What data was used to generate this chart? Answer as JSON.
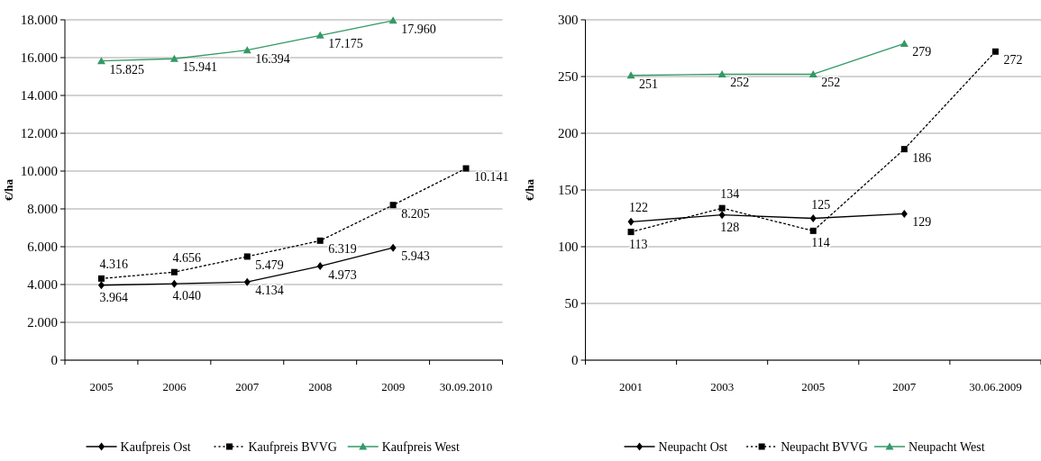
{
  "chart_data": [
    {
      "type": "line",
      "ylabel": "€/ha",
      "categories": [
        "2005",
        "2006",
        "2007",
        "2008",
        "2009",
        "30.09.2010"
      ],
      "ylim": [
        0,
        18000
      ],
      "yticks": [
        {
          "value": 0,
          "label": "0"
        },
        {
          "value": 2000,
          "label": "2.000"
        },
        {
          "value": 4000,
          "label": "4.000"
        },
        {
          "value": 6000,
          "label": "6.000"
        },
        {
          "value": 8000,
          "label": "8.000"
        },
        {
          "value": 10000,
          "label": "10.000"
        },
        {
          "value": 12000,
          "label": "12.000"
        },
        {
          "value": 14000,
          "label": "14.000"
        },
        {
          "value": 16000,
          "label": "16.000"
        },
        {
          "value": 18000,
          "label": "18.000"
        }
      ],
      "grid": "y",
      "legend": "bottom",
      "series": [
        {
          "name": "Kaufpreis Ost",
          "color": "#000000",
          "marker": "diamond",
          "line_style": "solid",
          "values": [
            3964,
            4040,
            4134,
            4973,
            5943,
            null
          ],
          "value_labels": [
            "3.964",
            "4.040",
            "4.134",
            "4.973",
            "5.943",
            null
          ]
        },
        {
          "name": "Kaufpreis BVVG",
          "color": "#000000",
          "marker": "square",
          "line_style": "dotted",
          "values": [
            4316,
            4656,
            5479,
            6319,
            8205,
            10141
          ],
          "value_labels": [
            "4.316",
            "4.656",
            "5.479",
            "6.319",
            "8.205",
            "10.141"
          ]
        },
        {
          "name": "Kaufpreis West",
          "color": "#339966",
          "marker": "triangle",
          "line_style": "solid",
          "values": [
            15825,
            15941,
            16394,
            17175,
            17960,
            null
          ],
          "value_labels": [
            "15.825",
            "15.941",
            "16.394",
            "17.175",
            "17.960",
            null
          ]
        }
      ]
    },
    {
      "type": "line",
      "ylabel": "€/ha",
      "categories": [
        "2001",
        "2003",
        "2005",
        "2007",
        "30.06.2009"
      ],
      "ylim": [
        0,
        300
      ],
      "yticks": [
        0,
        50,
        100,
        150,
        200,
        250,
        300
      ],
      "grid": "y",
      "legend": "bottom",
      "data_labels": true,
      "series": [
        {
          "name": "Neupacht Ost",
          "color": "#000000",
          "marker": "diamond",
          "line_style": "solid",
          "values": [
            122,
            128,
            125,
            129,
            null
          ]
        },
        {
          "name": "Neupacht BVVG",
          "color": "#000000",
          "marker": "square",
          "line_style": "dotted",
          "values": [
            113,
            134,
            114,
            186,
            272
          ]
        },
        {
          "name": "Neupacht West",
          "color": "#339966",
          "marker": "triangle",
          "line_style": "solid",
          "values": [
            251,
            252,
            252,
            279,
            null
          ]
        }
      ]
    }
  ]
}
